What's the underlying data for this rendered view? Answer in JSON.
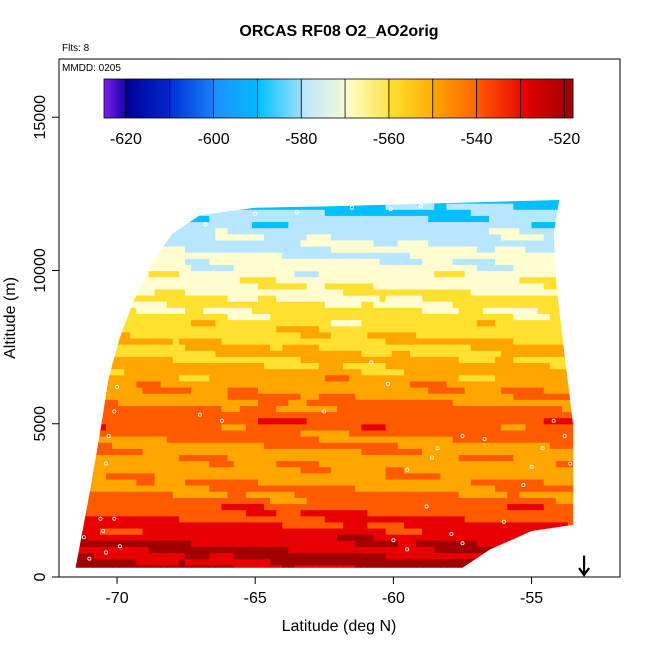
{
  "chart_data": {
    "type": "heatmap",
    "title": "ORCAS RF08 O2_AO2orig",
    "notes": [
      "Flts: 8",
      "MMDD: 0205"
    ],
    "xlabel": "Latitude (deg N)",
    "ylabel": "Altitude (m)",
    "xlim": [
      -72.1,
      -51.8
    ],
    "ylim": [
      0,
      16900
    ],
    "xticks": [
      -70,
      -65,
      -60,
      -55
    ],
    "yticks": [
      0,
      5000,
      10000,
      15000
    ],
    "colorbar": {
      "vmin": -625,
      "vmax": -518,
      "ticks": [
        -620,
        -600,
        -580,
        -560,
        -540,
        -520
      ],
      "breaks": [
        -625,
        -620,
        -610,
        -600,
        -590,
        -580,
        -570,
        -560,
        -550,
        -540,
        -530,
        -520,
        -518
      ],
      "colors": [
        "#7a1fe8",
        "#00009a",
        "#0030d8",
        "#1e90ff",
        "#00c0ff",
        "#b8e6ff",
        "#fffdd0",
        "#ffe030",
        "#ffa500",
        "#ff5a00",
        "#e80000",
        "#a00000"
      ]
    },
    "field": {
      "lat_range": [
        -71.5,
        -53.5
      ],
      "alt_range": [
        200,
        12300
      ],
      "outline": [
        [
          -71.5,
          300
        ],
        [
          -71.0,
          2700
        ],
        [
          -70.6,
          4800
        ],
        [
          -70.3,
          6500
        ],
        [
          -69.9,
          7800
        ],
        [
          -69.4,
          9000
        ],
        [
          -68.7,
          10300
        ],
        [
          -68.0,
          11200
        ],
        [
          -67.0,
          11800
        ],
        [
          -65.0,
          12050
        ],
        [
          -62.0,
          12100
        ],
        [
          -60.0,
          12150
        ],
        [
          -54.0,
          12300
        ],
        [
          -54.2,
          11200
        ],
        [
          -54.1,
          9500
        ],
        [
          -53.8,
          7200
        ],
        [
          -53.5,
          5000
        ],
        [
          -53.5,
          1700
        ],
        [
          -55.0,
          1500
        ],
        [
          -56.5,
          900
        ],
        [
          -57.5,
          300
        ]
      ],
      "profile": [
        {
          "alt": 300,
          "value": -518
        },
        {
          "alt": 1000,
          "value": -521
        },
        {
          "alt": 1800,
          "value": -529
        },
        {
          "alt": 2600,
          "value": -537
        },
        {
          "alt": 3400,
          "value": -544
        },
        {
          "alt": 4200,
          "value": -542
        },
        {
          "alt": 5100,
          "value": -533
        },
        {
          "alt": 5800,
          "value": -541
        },
        {
          "alt": 6600,
          "value": -546
        },
        {
          "alt": 7600,
          "value": -551
        },
        {
          "alt": 8600,
          "value": -557
        },
        {
          "alt": 9600,
          "value": -563
        },
        {
          "alt": 10600,
          "value": -569
        },
        {
          "alt": 11500,
          "value": -576
        },
        {
          "alt": 12200,
          "value": -583
        }
      ]
    },
    "samples": [
      [
        -71.2,
        1300
      ],
      [
        -71.0,
        600
      ],
      [
        -70.9,
        200
      ],
      [
        -70.6,
        1900
      ],
      [
        -70.5,
        1500
      ],
      [
        -70.4,
        800
      ],
      [
        -70.3,
        200
      ],
      [
        -70.1,
        1900
      ],
      [
        -69.9,
        1000
      ],
      [
        -70.4,
        3700
      ],
      [
        -70.3,
        4600
      ],
      [
        -70.1,
        5400
      ],
      [
        -70.0,
        6200
      ],
      [
        -67.0,
        5300
      ],
      [
        -66.2,
        5100
      ],
      [
        -62.5,
        5400
      ],
      [
        -61.5,
        8300
      ],
      [
        -60.2,
        6300
      ],
      [
        -60.8,
        7000
      ],
      [
        -59.5,
        3500
      ],
      [
        -58.6,
        3900
      ],
      [
        -58.4,
        4200
      ],
      [
        -57.5,
        4600
      ],
      [
        -56.7,
        4500
      ],
      [
        -55.3,
        3000
      ],
      [
        -55.0,
        3600
      ],
      [
        -54.6,
        4200
      ],
      [
        -54.2,
        5100
      ],
      [
        -53.8,
        4600
      ],
      [
        -53.6,
        3700
      ],
      [
        -60.0,
        1200
      ],
      [
        -59.5,
        900
      ],
      [
        -58.8,
        2300
      ],
      [
        -57.9,
        1400
      ],
      [
        -57.5,
        1100
      ],
      [
        -56.9,
        500
      ],
      [
        -56.0,
        1800
      ],
      [
        -55.3,
        1300
      ],
      [
        -60.1,
        12000
      ],
      [
        -61.5,
        12050
      ],
      [
        -63.5,
        11900
      ],
      [
        -65.0,
        11850
      ],
      [
        -66.8,
        11500
      ],
      [
        -59.0,
        12100
      ]
    ],
    "arrow": {
      "lat": -53.1,
      "alt_top": 700,
      "alt_bottom": 0
    }
  }
}
